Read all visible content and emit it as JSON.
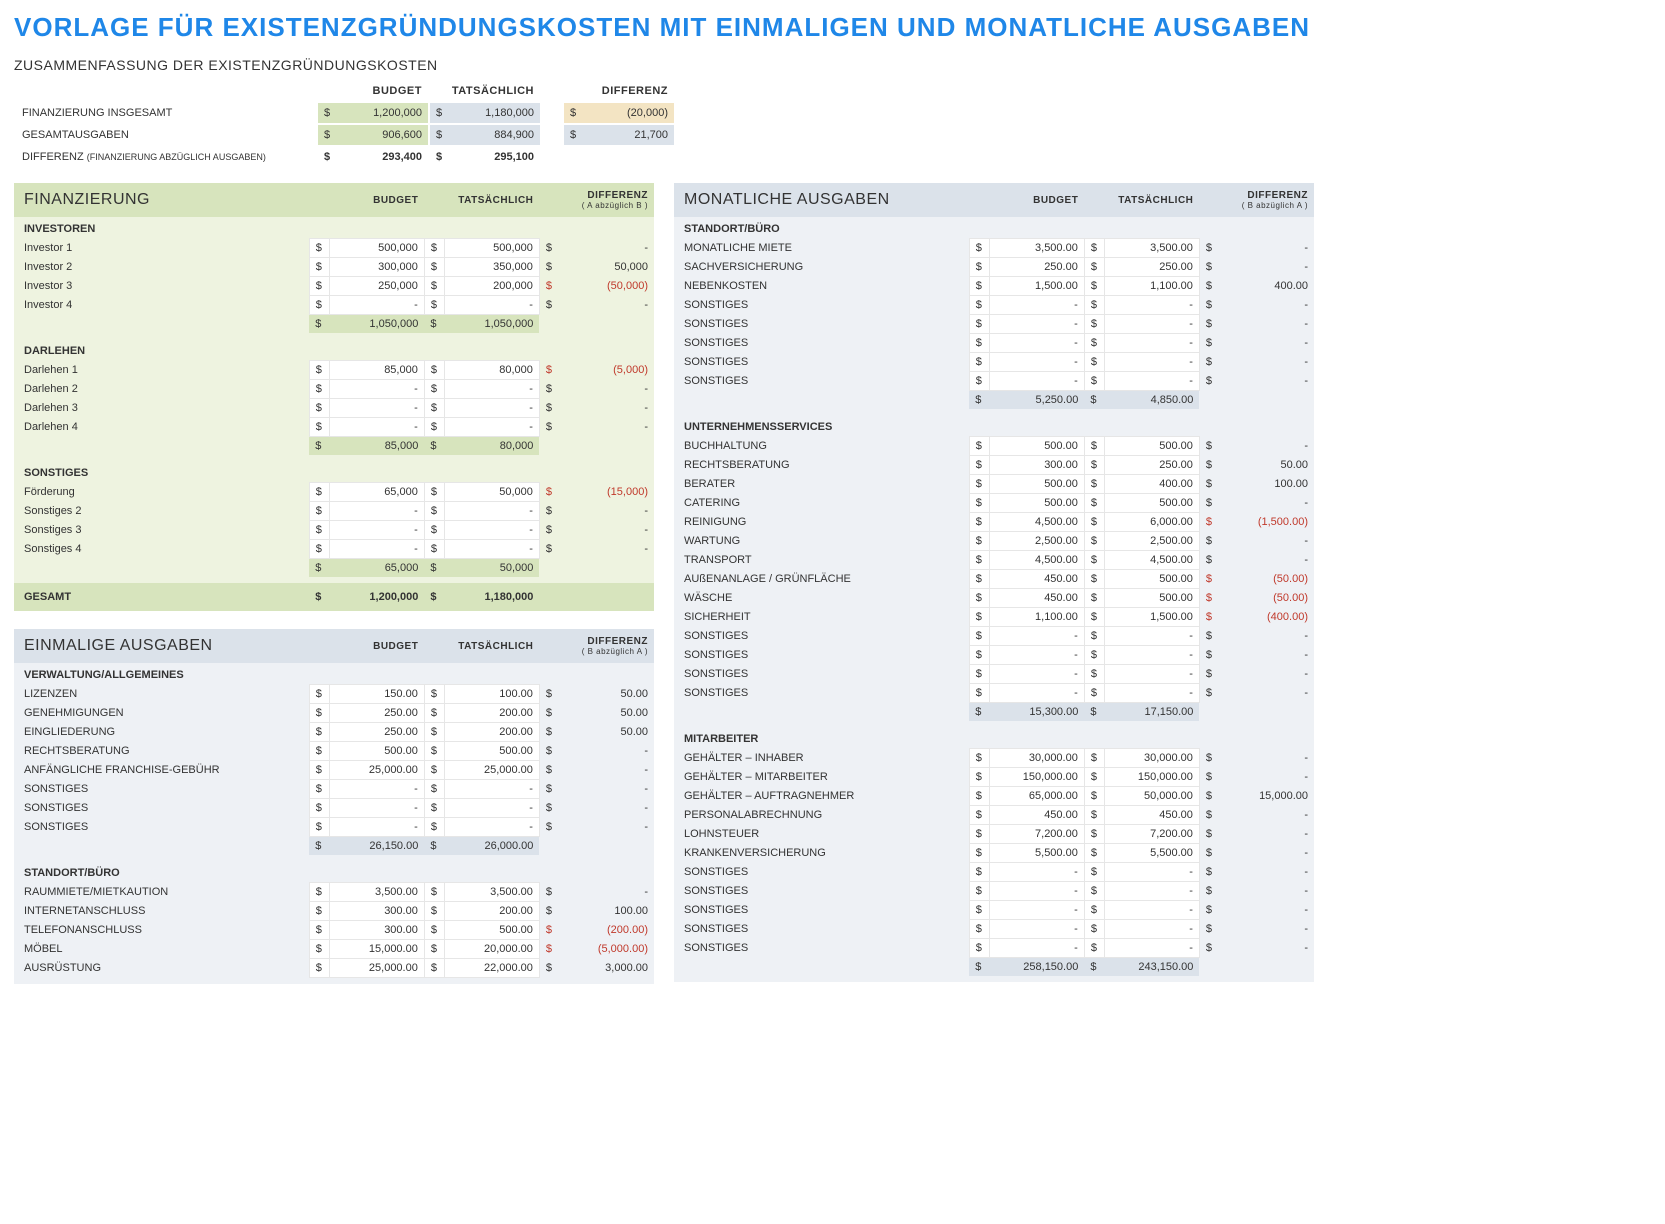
{
  "title": "VORLAGE FÜR EXISTENZGRÜNDUNGSKOSTEN MIT EINMALIGEN UND MONATLICHE AUSGABEN",
  "summary": {
    "heading": "ZUSAMMENFASSUNG DER EXISTENZGRÜNDUNGSKOSTEN",
    "col_budget": "BUDGET",
    "col_actual": "TATSÄCHLICH",
    "col_diff": "DIFFERENZ",
    "rows": [
      {
        "label": "FINANZIERUNG INSGESAMT",
        "budget": "1,200,000",
        "actual": "1,180,000",
        "diff": "(20,000)",
        "diff_neg": true,
        "diff_box": "box-red"
      },
      {
        "label": "GESAMTAUSGABEN",
        "budget": "906,600",
        "actual": "884,900",
        "diff": "21,700",
        "diff_neg": false,
        "diff_box": "box-gray"
      }
    ],
    "footer_label": "DIFFERENZ",
    "footer_sub": "(FINANZIERUNG ABZÜGLICH AUSGABEN)",
    "footer_budget": "293,400",
    "footer_actual": "295,100"
  },
  "finanzierung": {
    "title": "FINANZIERUNG",
    "col_budget": "BUDGET",
    "col_actual": "TATSÄCHLICH",
    "col_diff": "DIFFERENZ",
    "col_diff_sub": "( A abzüglich B )",
    "groups": [
      {
        "name": "INVESTOREN",
        "rows": [
          {
            "label": "Investor 1",
            "budget": "500,000",
            "actual": "500,000",
            "diff": "-"
          },
          {
            "label": "Investor 2",
            "budget": "300,000",
            "actual": "350,000",
            "diff": "50,000"
          },
          {
            "label": "Investor 3",
            "budget": "250,000",
            "actual": "200,000",
            "diff": "(50,000)",
            "neg": true
          },
          {
            "label": "Investor 4",
            "budget": "-",
            "actual": "-",
            "diff": "-"
          }
        ],
        "subtotal": {
          "budget": "1,050,000",
          "actual": "1,050,000"
        }
      },
      {
        "name": "DARLEHEN",
        "rows": [
          {
            "label": "Darlehen 1",
            "budget": "85,000",
            "actual": "80,000",
            "diff": "(5,000)",
            "neg": true
          },
          {
            "label": "Darlehen 2",
            "budget": "-",
            "actual": "-",
            "diff": "-"
          },
          {
            "label": "Darlehen 3",
            "budget": "-",
            "actual": "-",
            "diff": "-"
          },
          {
            "label": "Darlehen 4",
            "budget": "-",
            "actual": "-",
            "diff": "-"
          }
        ],
        "subtotal": {
          "budget": "85,000",
          "actual": "80,000"
        }
      },
      {
        "name": "SONSTIGES",
        "rows": [
          {
            "label": "Förderung",
            "budget": "65,000",
            "actual": "50,000",
            "diff": "(15,000)",
            "neg": true
          },
          {
            "label": "Sonstiges 2",
            "budget": "-",
            "actual": "-",
            "diff": "-"
          },
          {
            "label": "Sonstiges 3",
            "budget": "-",
            "actual": "-",
            "diff": "-"
          },
          {
            "label": "Sonstiges 4",
            "budget": "-",
            "actual": "-",
            "diff": "-"
          }
        ],
        "subtotal": {
          "budget": "65,000",
          "actual": "50,000"
        }
      }
    ],
    "total_label": "GESAMT",
    "total": {
      "budget": "1,200,000",
      "actual": "1,180,000"
    }
  },
  "einmalige": {
    "title": "EINMALIGE AUSGABEN",
    "col_budget": "BUDGET",
    "col_actual": "TATSÄCHLICH",
    "col_diff": "DIFFERENZ",
    "col_diff_sub": "( B abzüglich A )",
    "groups": [
      {
        "name": "VERWALTUNG/ALLGEMEINES",
        "rows": [
          {
            "label": "LIZENZEN",
            "budget": "150.00",
            "actual": "100.00",
            "diff": "50.00"
          },
          {
            "label": "GENEHMIGUNGEN",
            "budget": "250.00",
            "actual": "200.00",
            "diff": "50.00"
          },
          {
            "label": "EINGLIEDERUNG",
            "budget": "250.00",
            "actual": "200.00",
            "diff": "50.00"
          },
          {
            "label": "RECHTSBERATUNG",
            "budget": "500.00",
            "actual": "500.00",
            "diff": "-"
          },
          {
            "label": "ANFÄNGLICHE FRANCHISE-GEBÜHR",
            "budget": "25,000.00",
            "actual": "25,000.00",
            "diff": "-"
          },
          {
            "label": "SONSTIGES",
            "budget": "-",
            "actual": "-",
            "diff": "-"
          },
          {
            "label": "SONSTIGES",
            "budget": "-",
            "actual": "-",
            "diff": "-"
          },
          {
            "label": "SONSTIGES",
            "budget": "-",
            "actual": "-",
            "diff": "-"
          }
        ],
        "subtotal": {
          "budget": "26,150.00",
          "actual": "26,000.00"
        }
      },
      {
        "name": "STANDORT/BÜRO",
        "rows": [
          {
            "label": "RAUMMIETE/MIETKAUTION",
            "budget": "3,500.00",
            "actual": "3,500.00",
            "diff": "-"
          },
          {
            "label": "INTERNETANSCHLUSS",
            "budget": "300.00",
            "actual": "200.00",
            "diff": "100.00"
          },
          {
            "label": "TELEFONANSCHLUSS",
            "budget": "300.00",
            "actual": "500.00",
            "diff": "(200.00)",
            "neg": true
          },
          {
            "label": "MÖBEL",
            "budget": "15,000.00",
            "actual": "20,000.00",
            "diff": "(5,000.00)",
            "neg": true
          },
          {
            "label": "AUSRÜSTUNG",
            "budget": "25,000.00",
            "actual": "22,000.00",
            "diff": "3,000.00"
          }
        ]
      }
    ]
  },
  "monatliche": {
    "title": "MONATLICHE AUSGABEN",
    "col_budget": "BUDGET",
    "col_actual": "TATSÄCHLICH",
    "col_diff": "DIFFERENZ",
    "col_diff_sub": "( B abzüglich A )",
    "groups": [
      {
        "name": "STANDORT/BÜRO",
        "rows": [
          {
            "label": "MONATLICHE MIETE",
            "budget": "3,500.00",
            "actual": "3,500.00",
            "diff": "-"
          },
          {
            "label": "SACHVERSICHERUNG",
            "budget": "250.00",
            "actual": "250.00",
            "diff": "-"
          },
          {
            "label": "NEBENKOSTEN",
            "budget": "1,500.00",
            "actual": "1,100.00",
            "diff": "400.00"
          },
          {
            "label": "SONSTIGES",
            "budget": "-",
            "actual": "-",
            "diff": "-"
          },
          {
            "label": "SONSTIGES",
            "budget": "-",
            "actual": "-",
            "diff": "-"
          },
          {
            "label": "SONSTIGES",
            "budget": "-",
            "actual": "-",
            "diff": "-"
          },
          {
            "label": "SONSTIGES",
            "budget": "-",
            "actual": "-",
            "diff": "-"
          },
          {
            "label": "SONSTIGES",
            "budget": "-",
            "actual": "-",
            "diff": "-"
          }
        ],
        "subtotal": {
          "budget": "5,250.00",
          "actual": "4,850.00"
        }
      },
      {
        "name": "UNTERNEHMENSSERVICES",
        "rows": [
          {
            "label": "BUCHHALTUNG",
            "budget": "500.00",
            "actual": "500.00",
            "diff": "-"
          },
          {
            "label": "RECHTSBERATUNG",
            "budget": "300.00",
            "actual": "250.00",
            "diff": "50.00"
          },
          {
            "label": "BERATER",
            "budget": "500.00",
            "actual": "400.00",
            "diff": "100.00"
          },
          {
            "label": "CATERING",
            "budget": "500.00",
            "actual": "500.00",
            "diff": "-"
          },
          {
            "label": "REINIGUNG",
            "budget": "4,500.00",
            "actual": "6,000.00",
            "diff": "(1,500.00)",
            "neg": true
          },
          {
            "label": "WARTUNG",
            "budget": "2,500.00",
            "actual": "2,500.00",
            "diff": "-"
          },
          {
            "label": "TRANSPORT",
            "budget": "4,500.00",
            "actual": "4,500.00",
            "diff": "-"
          },
          {
            "label": "AUßENANLAGE / GRÜNFLÄCHE",
            "budget": "450.00",
            "actual": "500.00",
            "diff": "(50.00)",
            "neg": true
          },
          {
            "label": "WÄSCHE",
            "budget": "450.00",
            "actual": "500.00",
            "diff": "(50.00)",
            "neg": true
          },
          {
            "label": "SICHERHEIT",
            "budget": "1,100.00",
            "actual": "1,500.00",
            "diff": "(400.00)",
            "neg": true
          },
          {
            "label": "SONSTIGES",
            "budget": "-",
            "actual": "-",
            "diff": "-"
          },
          {
            "label": "SONSTIGES",
            "budget": "-",
            "actual": "-",
            "diff": "-"
          },
          {
            "label": "SONSTIGES",
            "budget": "-",
            "actual": "-",
            "diff": "-"
          },
          {
            "label": "SONSTIGES",
            "budget": "-",
            "actual": "-",
            "diff": "-"
          }
        ],
        "subtotal": {
          "budget": "15,300.00",
          "actual": "17,150.00"
        }
      },
      {
        "name": "MITARBEITER",
        "rows": [
          {
            "label": "GEHÄLTER – INHABER",
            "budget": "30,000.00",
            "actual": "30,000.00",
            "diff": "-"
          },
          {
            "label": "GEHÄLTER – MITARBEITER",
            "budget": "150,000.00",
            "actual": "150,000.00",
            "diff": "-"
          },
          {
            "label": "GEHÄLTER – AUFTRAGNEHMER",
            "budget": "65,000.00",
            "actual": "50,000.00",
            "diff": "15,000.00"
          },
          {
            "label": "PERSONALABRECHNUNG",
            "budget": "450.00",
            "actual": "450.00",
            "diff": "-"
          },
          {
            "label": "LOHNSTEUER",
            "budget": "7,200.00",
            "actual": "7,200.00",
            "diff": "-"
          },
          {
            "label": "KRANKENVERSICHERUNG",
            "budget": "5,500.00",
            "actual": "5,500.00",
            "diff": "-"
          },
          {
            "label": "SONSTIGES",
            "budget": "-",
            "actual": "-",
            "diff": "-"
          },
          {
            "label": "SONSTIGES",
            "budget": "-",
            "actual": "-",
            "diff": "-"
          },
          {
            "label": "SONSTIGES",
            "budget": "-",
            "actual": "-",
            "diff": "-"
          },
          {
            "label": "SONSTIGES",
            "budget": "-",
            "actual": "-",
            "diff": "-"
          },
          {
            "label": "SONSTIGES",
            "budget": "-",
            "actual": "-",
            "diff": "-"
          }
        ],
        "subtotal": {
          "budget": "258,150.00",
          "actual": "243,150.00"
        }
      }
    ]
  }
}
